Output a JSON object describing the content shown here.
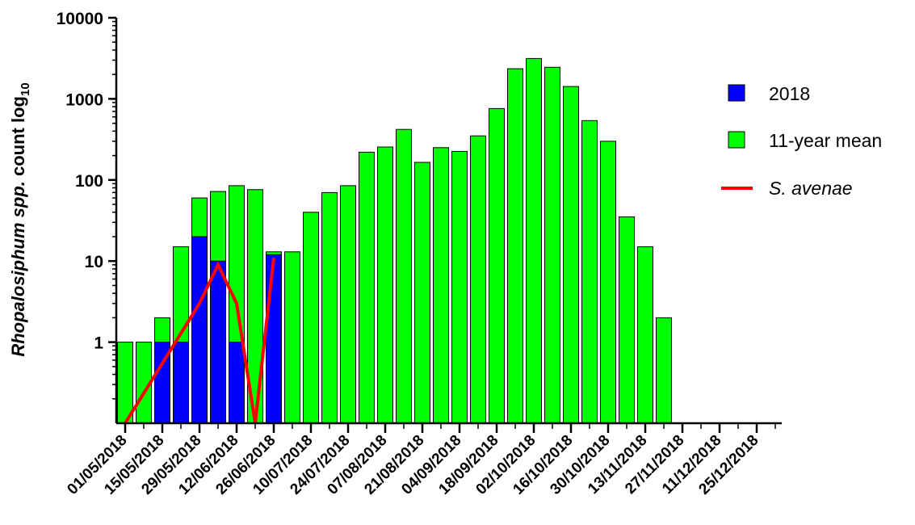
{
  "chart_data": {
    "type": "bar",
    "ylabel_parts": [
      "Rhopalosiphum spp.",
      " count log",
      "10"
    ],
    "xlabel": "",
    "y_scale": "log10",
    "ylim": [
      0.1,
      10000
    ],
    "yticks": [
      {
        "value": 1,
        "label": "1"
      },
      {
        "value": 10,
        "label": "10"
      },
      {
        "value": 100,
        "label": "100"
      },
      {
        "value": 1000,
        "label": "1000"
      },
      {
        "value": 10000,
        "label": "10000"
      }
    ],
    "x_tick_labels": [
      "01/05/2018",
      "15/05/2018",
      "29/05/2018",
      "12/06/2018",
      "26/06/2018",
      "10/07/2018",
      "24/07/2018",
      "07/08/2018",
      "21/08/2018",
      "04/09/2018",
      "18/09/2018",
      "02/10/2018",
      "16/10/2018",
      "30/10/2018",
      "13/11/2018",
      "27/11/2018",
      "11/12/2018",
      "25/12/2018"
    ],
    "week_count": 36,
    "legend": [
      {
        "label": "2018",
        "color": "#0000ff",
        "kind": "box"
      },
      {
        "label": "11-year mean",
        "color": "#00ff00",
        "kind": "box"
      },
      {
        "label": "S. avenae",
        "color": "#ff0000",
        "kind": "line",
        "italic": true
      }
    ],
    "series": [
      {
        "name": "11-year mean",
        "kind": "bar",
        "color": "#00ff00",
        "values": [
          1,
          1,
          2,
          15,
          60,
          72,
          85,
          76,
          13,
          13,
          40,
          70,
          85,
          220,
          255,
          420,
          165,
          250,
          225,
          350,
          760,
          2350,
          3150,
          2450,
          1420,
          540,
          300,
          35,
          15,
          2,
          null,
          null,
          null,
          null,
          null,
          null
        ]
      },
      {
        "name": "2018",
        "kind": "bar",
        "color": "#0000ff",
        "values": [
          null,
          null,
          1,
          1,
          20,
          10,
          1,
          null,
          12,
          null,
          null,
          null,
          null,
          null,
          null,
          null,
          null,
          null,
          null,
          null,
          null,
          null,
          null,
          null,
          null,
          null,
          null,
          null,
          null,
          null,
          null,
          null,
          null,
          null,
          null,
          null
        ]
      },
      {
        "name": "S. avenae",
        "kind": "line",
        "color": "#ff0000",
        "values": [
          0.1,
          null,
          null,
          null,
          3,
          9,
          3,
          0.1,
          11,
          null,
          null,
          null,
          null,
          null,
          null,
          null,
          null,
          null,
          null,
          null,
          null,
          null,
          null,
          null,
          null,
          null,
          null,
          null,
          null,
          null,
          null,
          null,
          null,
          null,
          null,
          null
        ]
      }
    ],
    "colors": {
      "mean": "#00ff00",
      "year": "#0000ff",
      "line": "#ff0000",
      "axis": "#000000"
    }
  }
}
